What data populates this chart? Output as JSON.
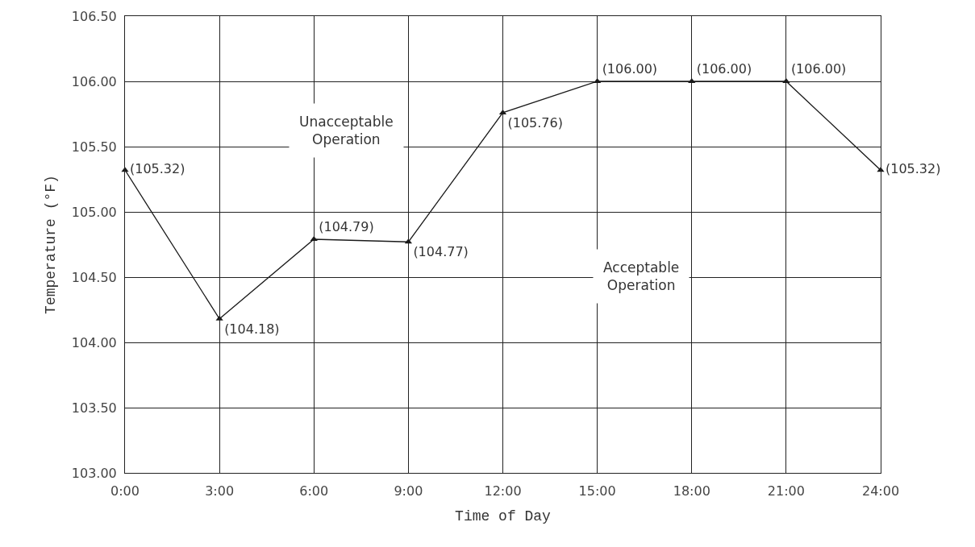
{
  "chart_data": {
    "type": "line",
    "xlabel": "Time of Day",
    "ylabel": "Temperature (°F)",
    "x": [
      0,
      3,
      6,
      9,
      12,
      15,
      18,
      21,
      24
    ],
    "series": [
      {
        "color": "#1a1a1a",
        "values": [
          105.32,
          104.18,
          104.79,
          104.77,
          105.76,
          106.0,
          106.0,
          106.0,
          105.32
        ],
        "value_labels": [
          "(105.32)",
          "(104.18)",
          "(104.79)",
          "(104.77)",
          "(105.76)",
          "(106.00)",
          "(106.00)",
          "(106.00)",
          "(105.32)"
        ]
      }
    ],
    "xlim": [
      0,
      24
    ],
    "xticks": [
      {
        "value": 0,
        "label": "0:00"
      },
      {
        "value": 3,
        "label": "3:00"
      },
      {
        "value": 6,
        "label": "6:00"
      },
      {
        "value": 9,
        "label": "9:00"
      },
      {
        "value": 12,
        "label": "12:00"
      },
      {
        "value": 15,
        "label": "15:00"
      },
      {
        "value": 18,
        "label": "18:00"
      },
      {
        "value": 21,
        "label": "21:00"
      },
      {
        "value": 24,
        "label": "24:00"
      }
    ],
    "ylim": [
      103,
      106.5
    ],
    "yticks": [
      {
        "value": 103,
        "label": "103.00"
      },
      {
        "value": 103.5,
        "label": "103.50"
      },
      {
        "value": 104,
        "label": "104.00"
      },
      {
        "value": 104.5,
        "label": "104.50"
      },
      {
        "value": 105,
        "label": "105.00"
      },
      {
        "value": 105.5,
        "label": "105.50"
      },
      {
        "value": 106,
        "label": "106.00"
      },
      {
        "value": 106.5,
        "label": "106.50"
      }
    ],
    "annotations": [
      "Unacceptable\nOperation",
      "Acceptable\nOperation"
    ],
    "grid": true,
    "marker": "triangle",
    "line_style": "solid"
  }
}
